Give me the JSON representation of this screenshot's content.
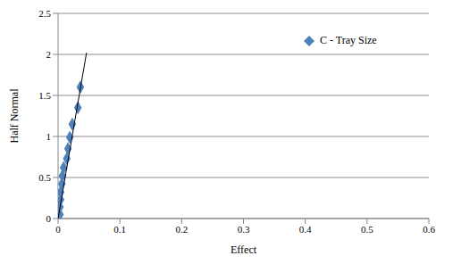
{
  "chart_data": {
    "type": "scatter",
    "x_label": "Effect",
    "y_label": "Half Normal",
    "xlim": [
      0,
      0.6
    ],
    "xticks": [
      0,
      0.1,
      0.2,
      0.3,
      0.4,
      0.5,
      0.6
    ],
    "ylim": [
      0,
      2.5
    ],
    "yticks": [
      0,
      0.5,
      1,
      1.5,
      2,
      2.5
    ],
    "grid": "y",
    "legend": "top-right",
    "series": [
      {
        "name": "C - Tray Size",
        "type": "scatter",
        "color": "#4f81bd",
        "marker": "diamond",
        "x": [
          0.003,
          0.003,
          0.004,
          0.004,
          0.006,
          0.007,
          0.009,
          0.014,
          0.016,
          0.019,
          0.023,
          0.032,
          0.036
        ],
        "values": [
          0.05,
          0.14,
          0.23,
          0.32,
          0.42,
          0.52,
          0.62,
          0.73,
          0.85,
          0.99,
          1.15,
          1.35,
          1.6
        ]
      },
      {
        "type": "line",
        "color": "#000000",
        "line_style": "solid",
        "x": [
          0,
          0.046
        ],
        "values": [
          0,
          2.02
        ]
      }
    ]
  }
}
